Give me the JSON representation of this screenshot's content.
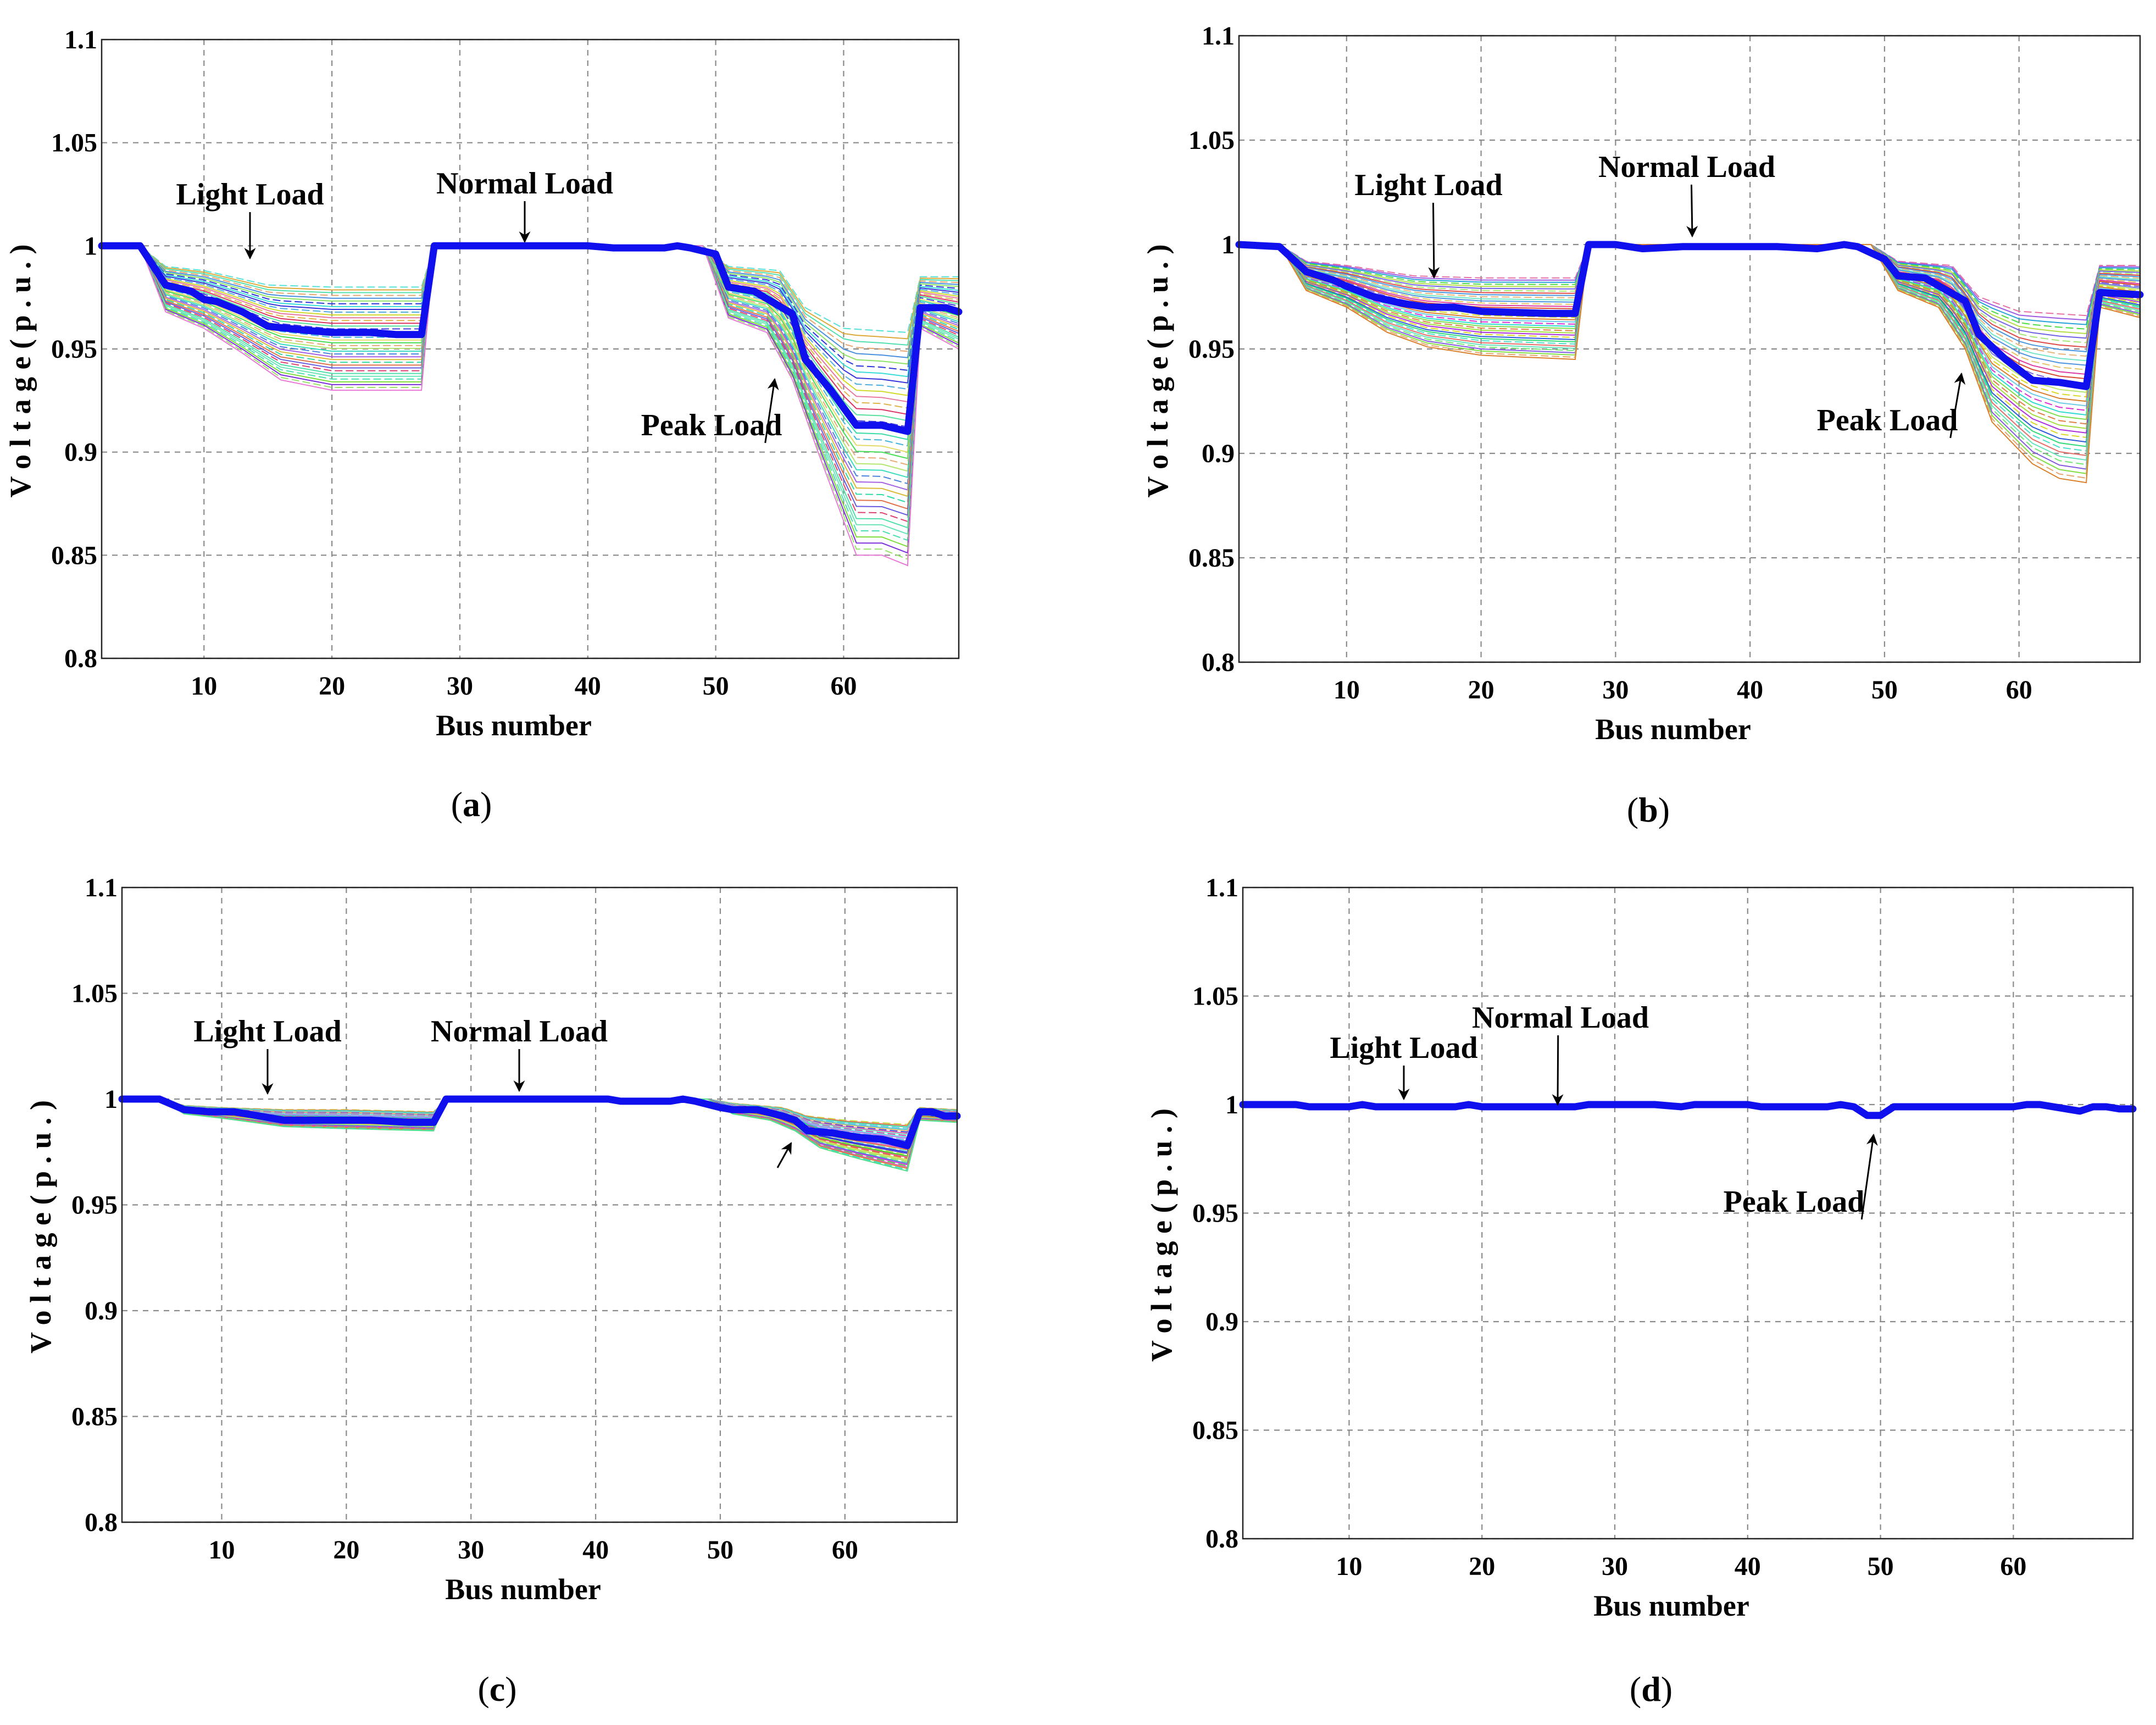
{
  "colors": {
    "main_line": "#1010ee",
    "annotation": "#000000"
  },
  "chart_data": [
    {
      "type": "line",
      "panel_label": "a",
      "xlabel": "Bus number",
      "ylabel": "V o l t a g e  ( p . u . )",
      "xlim": [
        2,
        69
      ],
      "ylim": [
        0.8,
        1.1
      ],
      "xticks": [
        10,
        20,
        30,
        40,
        50,
        60
      ],
      "yticks": [
        "0.8",
        "0.85",
        "0.9",
        "0.95",
        "1",
        "1.05",
        "1.1"
      ],
      "series": [
        {
          "name": "Voltage profile",
          "points": [
            [
              2,
              1.0
            ],
            [
              5,
              1.0
            ],
            [
              7,
              0.981
            ],
            [
              9,
              0.978
            ],
            [
              10,
              0.974
            ],
            [
              11,
              0.973
            ],
            [
              13,
              0.968
            ],
            [
              15,
              0.961
            ],
            [
              18,
              0.959
            ],
            [
              20,
              0.958
            ],
            [
              23,
              0.958
            ],
            [
              25,
              0.957
            ],
            [
              27,
              0.957
            ],
            [
              28,
              1.0
            ],
            [
              35,
              1.0
            ],
            [
              40,
              1.0
            ],
            [
              42,
              0.999
            ],
            [
              46,
              0.999
            ],
            [
              47,
              1.0
            ],
            [
              48,
              0.999
            ],
            [
              50,
              0.996
            ],
            [
              51,
              0.98
            ],
            [
              53,
              0.978
            ],
            [
              56,
              0.967
            ],
            [
              57,
              0.945
            ],
            [
              59,
              0.93
            ],
            [
              61,
              0.913
            ],
            [
              63,
              0.913
            ],
            [
              65,
              0.91
            ],
            [
              66,
              0.97
            ],
            [
              68,
              0.97
            ],
            [
              69,
              0.968
            ]
          ]
        }
      ],
      "band": {
        "upper": [
          [
            2,
            1.0
          ],
          [
            5,
            1.0
          ],
          [
            7,
            0.99
          ],
          [
            10,
            0.988
          ],
          [
            15,
            0.981
          ],
          [
            20,
            0.98
          ],
          [
            27,
            0.98
          ],
          [
            28,
            1.0
          ],
          [
            35,
            1.0
          ],
          [
            49,
            1.0
          ],
          [
            51,
            0.99
          ],
          [
            55,
            0.988
          ],
          [
            57,
            0.97
          ],
          [
            60,
            0.96
          ],
          [
            65,
            0.958
          ],
          [
            66,
            0.985
          ],
          [
            69,
            0.985
          ]
        ],
        "lower": [
          [
            2,
            1.0
          ],
          [
            5,
            1.0
          ],
          [
            7,
            0.968
          ],
          [
            10,
            0.96
          ],
          [
            13,
            0.948
          ],
          [
            16,
            0.935
          ],
          [
            20,
            0.93
          ],
          [
            27,
            0.93
          ],
          [
            28,
            1.0
          ],
          [
            35,
            1.0
          ],
          [
            49,
            1.0
          ],
          [
            51,
            0.965
          ],
          [
            54,
            0.958
          ],
          [
            56,
            0.935
          ],
          [
            58,
            0.9
          ],
          [
            61,
            0.85
          ],
          [
            63,
            0.85
          ],
          [
            65,
            0.845
          ],
          [
            66,
            0.96
          ],
          [
            69,
            0.95
          ]
        ]
      },
      "annotations": [
        {
          "text": "Light Load",
          "x": 13,
          "y": 0.973
        },
        {
          "text": "Normal Load",
          "x": 35,
          "y": 0.997
        },
        {
          "text": "Peak Load",
          "x": 56,
          "y": 0.94
        }
      ]
    },
    {
      "type": "line",
      "panel_label": "b",
      "xlabel": "Bus number",
      "ylabel": "V o l t a g e  ( p . u . )",
      "xlim": [
        2,
        69
      ],
      "ylim": [
        0.8,
        1.1
      ],
      "xticks": [
        10,
        20,
        30,
        40,
        50,
        60
      ],
      "yticks": [
        "0.8",
        "0.85",
        "0.9",
        "0.95",
        "1",
        "1.05",
        "1.1"
      ],
      "series": [
        {
          "name": "Voltage profile",
          "points": [
            [
              2,
              1.0
            ],
            [
              5,
              0.999
            ],
            [
              7,
              0.987
            ],
            [
              9,
              0.983
            ],
            [
              10,
              0.98
            ],
            [
              12,
              0.975
            ],
            [
              14,
              0.972
            ],
            [
              16,
              0.97
            ],
            [
              18,
              0.97
            ],
            [
              20,
              0.968
            ],
            [
              25,
              0.967
            ],
            [
              27,
              0.967
            ],
            [
              28,
              1.0
            ],
            [
              30,
              1.0
            ],
            [
              32,
              0.998
            ],
            [
              35,
              0.999
            ],
            [
              38,
              0.999
            ],
            [
              42,
              0.999
            ],
            [
              45,
              0.998
            ],
            [
              47,
              1.0
            ],
            [
              48,
              0.999
            ],
            [
              50,
              0.993
            ],
            [
              51,
              0.985
            ],
            [
              53,
              0.984
            ],
            [
              56,
              0.973
            ],
            [
              57,
              0.957
            ],
            [
              59,
              0.945
            ],
            [
              61,
              0.935
            ],
            [
              63,
              0.934
            ],
            [
              65,
              0.932
            ],
            [
              66,
              0.977
            ],
            [
              69,
              0.976
            ]
          ]
        }
      ],
      "band": {
        "upper": [
          [
            2,
            1.0
          ],
          [
            5,
            1.0
          ],
          [
            7,
            0.992
          ],
          [
            10,
            0.99
          ],
          [
            15,
            0.985
          ],
          [
            20,
            0.984
          ],
          [
            27,
            0.984
          ],
          [
            28,
            1.0
          ],
          [
            35,
            1.0
          ],
          [
            49,
            1.0
          ],
          [
            51,
            0.992
          ],
          [
            55,
            0.99
          ],
          [
            57,
            0.975
          ],
          [
            60,
            0.968
          ],
          [
            65,
            0.966
          ],
          [
            66,
            0.99
          ],
          [
            69,
            0.99
          ]
        ],
        "lower": [
          [
            2,
            1.0
          ],
          [
            5,
            1.0
          ],
          [
            7,
            0.978
          ],
          [
            10,
            0.97
          ],
          [
            13,
            0.958
          ],
          [
            16,
            0.951
          ],
          [
            20,
            0.947
          ],
          [
            27,
            0.945
          ],
          [
            28,
            1.0
          ],
          [
            35,
            1.0
          ],
          [
            49,
            1.0
          ],
          [
            51,
            0.978
          ],
          [
            54,
            0.97
          ],
          [
            56,
            0.95
          ],
          [
            58,
            0.915
          ],
          [
            61,
            0.895
          ],
          [
            63,
            0.888
          ],
          [
            65,
            0.886
          ],
          [
            66,
            0.97
          ],
          [
            69,
            0.965
          ]
        ]
      },
      "annotations": [
        {
          "text": "Light Load",
          "x": 16,
          "y": 0.97
        },
        {
          "text": "Normal Load",
          "x": 36,
          "y": 0.996
        },
        {
          "text": "Peak Load",
          "x": 57,
          "y": 0.943
        }
      ]
    },
    {
      "type": "line",
      "panel_label": "c",
      "xlabel": "Bus number",
      "ylabel": "V o l t a g e  ( p . u . )",
      "xlim": [
        2,
        69
      ],
      "ylim": [
        0.8,
        1.1
      ],
      "xticks": [
        10,
        20,
        30,
        40,
        50,
        60
      ],
      "yticks": [
        "0.8",
        "0.85",
        "0.9",
        "0.95",
        "1",
        "1.05",
        "1.1"
      ],
      "series": [
        {
          "name": "Voltage profile",
          "points": [
            [
              2,
              1.0
            ],
            [
              5,
              1.0
            ],
            [
              7,
              0.995
            ],
            [
              9,
              0.994
            ],
            [
              11,
              0.994
            ],
            [
              13,
              0.992
            ],
            [
              15,
              0.99
            ],
            [
              18,
              0.99
            ],
            [
              22,
              0.99
            ],
            [
              25,
              0.989
            ],
            [
              27,
              0.989
            ],
            [
              28,
              1.0
            ],
            [
              35,
              1.0
            ],
            [
              41,
              1.0
            ],
            [
              42,
              0.999
            ],
            [
              46,
              0.999
            ],
            [
              47,
              1.0
            ],
            [
              48,
              0.999
            ],
            [
              50,
              0.996
            ],
            [
              51,
              0.995
            ],
            [
              53,
              0.995
            ],
            [
              55,
              0.992
            ],
            [
              56,
              0.99
            ],
            [
              57,
              0.985
            ],
            [
              59,
              0.984
            ],
            [
              61,
              0.982
            ],
            [
              63,
              0.981
            ],
            [
              65,
              0.978
            ],
            [
              66,
              0.994
            ],
            [
              67,
              0.994
            ],
            [
              68,
              0.992
            ],
            [
              69,
              0.992
            ]
          ]
        }
      ],
      "band": {
        "upper": [
          [
            2,
            1.0
          ],
          [
            5,
            1.0
          ],
          [
            7,
            0.997
          ],
          [
            10,
            0.996
          ],
          [
            15,
            0.995
          ],
          [
            20,
            0.995
          ],
          [
            27,
            0.994
          ],
          [
            28,
            1.0
          ],
          [
            35,
            1.0
          ],
          [
            49,
            1.0
          ],
          [
            51,
            0.998
          ],
          [
            55,
            0.996
          ],
          [
            57,
            0.992
          ],
          [
            60,
            0.99
          ],
          [
            65,
            0.988
          ],
          [
            66,
            0.996
          ],
          [
            69,
            0.995
          ]
        ],
        "lower": [
          [
            2,
            1.0
          ],
          [
            5,
            1.0
          ],
          [
            7,
            0.993
          ],
          [
            10,
            0.991
          ],
          [
            15,
            0.987
          ],
          [
            20,
            0.986
          ],
          [
            27,
            0.985
          ],
          [
            28,
            1.0
          ],
          [
            35,
            1.0
          ],
          [
            49,
            1.0
          ],
          [
            51,
            0.993
          ],
          [
            54,
            0.99
          ],
          [
            56,
            0.985
          ],
          [
            58,
            0.977
          ],
          [
            61,
            0.972
          ],
          [
            63,
            0.969
          ],
          [
            65,
            0.966
          ],
          [
            66,
            0.99
          ],
          [
            69,
            0.989
          ]
        ]
      },
      "annotations": [
        {
          "text": "Light Load",
          "x": 14,
          "y": 0.992
        },
        {
          "text": "Normal Load",
          "x": 34,
          "y": 0.999
        },
        {
          "text": "",
          "x": 56,
          "y": 0.988
        }
      ]
    },
    {
      "type": "line",
      "panel_label": "d",
      "xlabel": "Bus number",
      "ylabel": "V o l t a g e  ( p . u . )",
      "xlim": [
        2,
        69
      ],
      "ylim": [
        0.8,
        1.1
      ],
      "xticks": [
        10,
        20,
        30,
        40,
        50,
        60
      ],
      "yticks": [
        "0.8",
        "0.85",
        "0.9",
        "0.95",
        "1",
        "1.05",
        "1.1"
      ],
      "series": [
        {
          "name": "Voltage profile",
          "points": [
            [
              2,
              1.0
            ],
            [
              6,
              1.0
            ],
            [
              7,
              0.999
            ],
            [
              10,
              0.999
            ],
            [
              11,
              1.0
            ],
            [
              12,
              0.999
            ],
            [
              18,
              0.999
            ],
            [
              19,
              1.0
            ],
            [
              20,
              0.999
            ],
            [
              26,
              0.999
            ],
            [
              27,
              0.999
            ],
            [
              28,
              1.0
            ],
            [
              32,
              1.0
            ],
            [
              33,
              1.0
            ],
            [
              35,
              0.999
            ],
            [
              36,
              1.0
            ],
            [
              40,
              1.0
            ],
            [
              41,
              0.999
            ],
            [
              46,
              0.999
            ],
            [
              47,
              1.0
            ],
            [
              48,
              0.999
            ],
            [
              49,
              0.995
            ],
            [
              50,
              0.995
            ],
            [
              51,
              0.999
            ],
            [
              60,
              0.999
            ],
            [
              61,
              1.0
            ],
            [
              62,
              1.0
            ],
            [
              64,
              0.998
            ],
            [
              65,
              0.997
            ],
            [
              66,
              0.999
            ],
            [
              67,
              0.999
            ],
            [
              68,
              0.998
            ],
            [
              69,
              0.998
            ]
          ]
        }
      ],
      "band": null,
      "annotations": [
        {
          "text": "Light Load",
          "x": 15,
          "y": 0.999
        },
        {
          "text": "Normal Load",
          "x": 25,
          "y": 0.998
        },
        {
          "text": "Peak Load",
          "x": 50,
          "y": 0.994
        }
      ]
    }
  ]
}
